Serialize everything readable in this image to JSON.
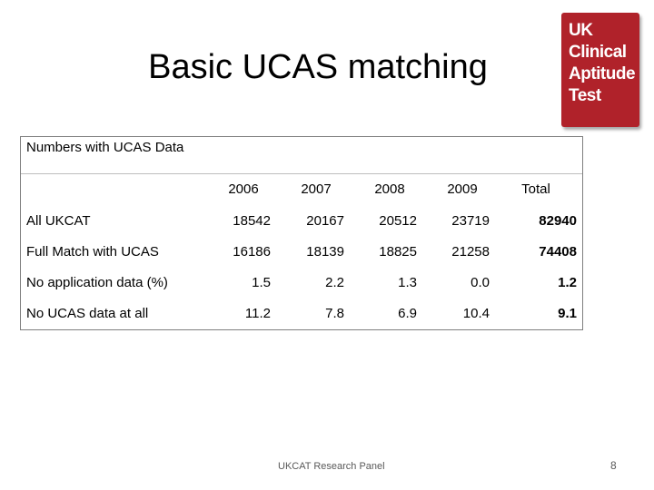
{
  "slide": {
    "title": "Basic UCAS matching",
    "footer": "UKCAT Research Panel",
    "page_number": "8"
  },
  "logo": {
    "lines": [
      "UK",
      "Clinical",
      "Aptitude",
      "Test"
    ],
    "color": "#b0222a"
  },
  "table": {
    "caption": "Numbers with UCAS Data",
    "columns": [
      "2006",
      "2007",
      "2008",
      "2009",
      "Total"
    ],
    "rows": [
      {
        "label": "All UKCAT",
        "values": [
          "18542",
          "20167",
          "20512",
          "23719",
          "82940"
        ]
      },
      {
        "label": "Full Match with UCAS",
        "values": [
          "16186",
          "18139",
          "18825",
          "21258",
          "74408"
        ]
      },
      {
        "label": "No application data (%)",
        "values": [
          "1.5",
          "2.2",
          "1.3",
          "0.0",
          "1.2"
        ]
      },
      {
        "label": "No UCAS data at all",
        "values": [
          "11.2",
          "7.8",
          "6.9",
          "10.4",
          "9.1"
        ]
      }
    ]
  }
}
